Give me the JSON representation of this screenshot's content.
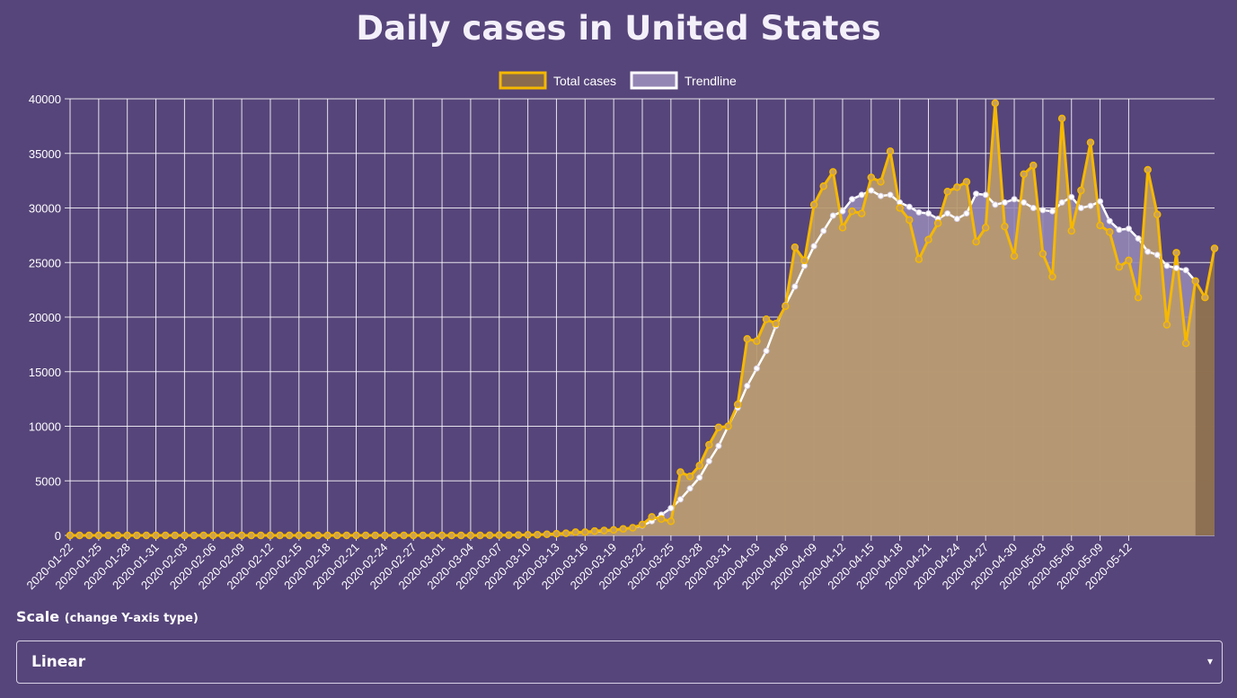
{
  "header": {
    "title": "Daily cases in United States"
  },
  "controls": {
    "scale_label": "Scale",
    "scale_hint": "(change Y-axis type)",
    "scale_value": "Linear",
    "scale_caret": "▾"
  },
  "colors": {
    "background": "#56457a",
    "total_line": "#f5b800",
    "total_fill": "#b89a6e",
    "trend_line": "#ffffff",
    "trend_fill": "#9486b4",
    "grid": "#ffffff"
  },
  "chart_data": {
    "type": "line",
    "title": "Daily cases in United States",
    "x_start": "2020-01-22",
    "x_tick_labels": [
      "2020-01-22",
      "2020-01-25",
      "2020-01-28",
      "2020-01-31",
      "2020-02-03",
      "2020-02-06",
      "2020-02-09",
      "2020-02-12",
      "2020-02-15",
      "2020-02-18",
      "2020-02-21",
      "2020-02-24",
      "2020-02-27",
      "2020-03-01",
      "2020-03-04",
      "2020-03-07",
      "2020-03-10",
      "2020-03-13",
      "2020-03-16",
      "2020-03-19",
      "2020-03-22",
      "2020-03-25",
      "2020-03-28",
      "2020-03-31",
      "2020-04-03",
      "2020-04-06",
      "2020-04-09",
      "2020-04-12",
      "2020-04-15",
      "2020-04-18",
      "2020-04-21",
      "2020-04-24",
      "2020-04-27",
      "2020-04-30",
      "2020-05-03",
      "2020-05-06",
      "2020-05-09",
      "2020-05-12"
    ],
    "y_ticks": [
      0,
      5000,
      10000,
      15000,
      20000,
      25000,
      30000,
      35000,
      40000
    ],
    "ylim": [
      0,
      40000
    ],
    "grid": true,
    "legend_position": "top-center",
    "series": [
      {
        "name": "Total cases",
        "values": [
          0,
          0,
          0,
          0,
          0,
          0,
          0,
          0,
          0,
          0,
          0,
          0,
          0,
          0,
          0,
          0,
          0,
          0,
          0,
          0,
          0,
          0,
          0,
          0,
          0,
          0,
          0,
          0,
          0,
          0,
          0,
          0,
          0,
          0,
          0,
          0,
          0,
          0,
          0,
          0,
          0,
          0,
          0,
          0,
          10,
          20,
          20,
          30,
          50,
          60,
          100,
          150,
          200,
          300,
          300,
          400,
          450,
          500,
          600,
          700,
          1000,
          1700,
          1500,
          1300,
          5800,
          5400,
          6400,
          8300,
          9900,
          10000,
          12000,
          18000,
          17800,
          19800,
          19400,
          21000,
          26400,
          25200,
          30300,
          32000,
          33300,
          28200,
          29700,
          29500,
          32800,
          32400,
          35200,
          30000,
          28900,
          25300,
          27100,
          28600,
          31500,
          31900,
          32400,
          26900,
          28200,
          39600,
          28300,
          25600,
          33100,
          33900,
          25800,
          23700,
          38200,
          27900,
          31600,
          36000,
          28400,
          27800,
          24600,
          25200,
          21800,
          33500,
          29400,
          19300,
          25900,
          17600,
          23300,
          21800,
          26300
        ]
      },
      {
        "name": "Trendline",
        "values": [
          0,
          0,
          0,
          0,
          0,
          0,
          0,
          0,
          0,
          0,
          0,
          0,
          0,
          0,
          0,
          0,
          0,
          0,
          0,
          0,
          0,
          0,
          0,
          0,
          0,
          0,
          0,
          0,
          0,
          0,
          0,
          0,
          0,
          0,
          0,
          0,
          0,
          0,
          0,
          0,
          0,
          0,
          0,
          0,
          10,
          20,
          30,
          40,
          50,
          70,
          100,
          150,
          200,
          250,
          300,
          350,
          400,
          500,
          600,
          700,
          900,
          1300,
          1900,
          2500,
          3300,
          4300,
          5300,
          6800,
          8200,
          10000,
          11700,
          13700,
          15300,
          16900,
          19200,
          21100,
          22800,
          24700,
          26500,
          27900,
          29300,
          29700,
          30800,
          31200,
          31600,
          31100,
          31200,
          30500,
          30100,
          29600,
          29500,
          29000,
          29500,
          29000,
          29500,
          31300,
          31200,
          30300,
          30500,
          30800,
          30500,
          30000,
          29800,
          29700,
          30500,
          31000,
          30000,
          30200,
          30600,
          28800,
          28000,
          28100,
          27200,
          26000,
          25700,
          24700,
          24500,
          24300,
          23300
        ]
      }
    ]
  }
}
